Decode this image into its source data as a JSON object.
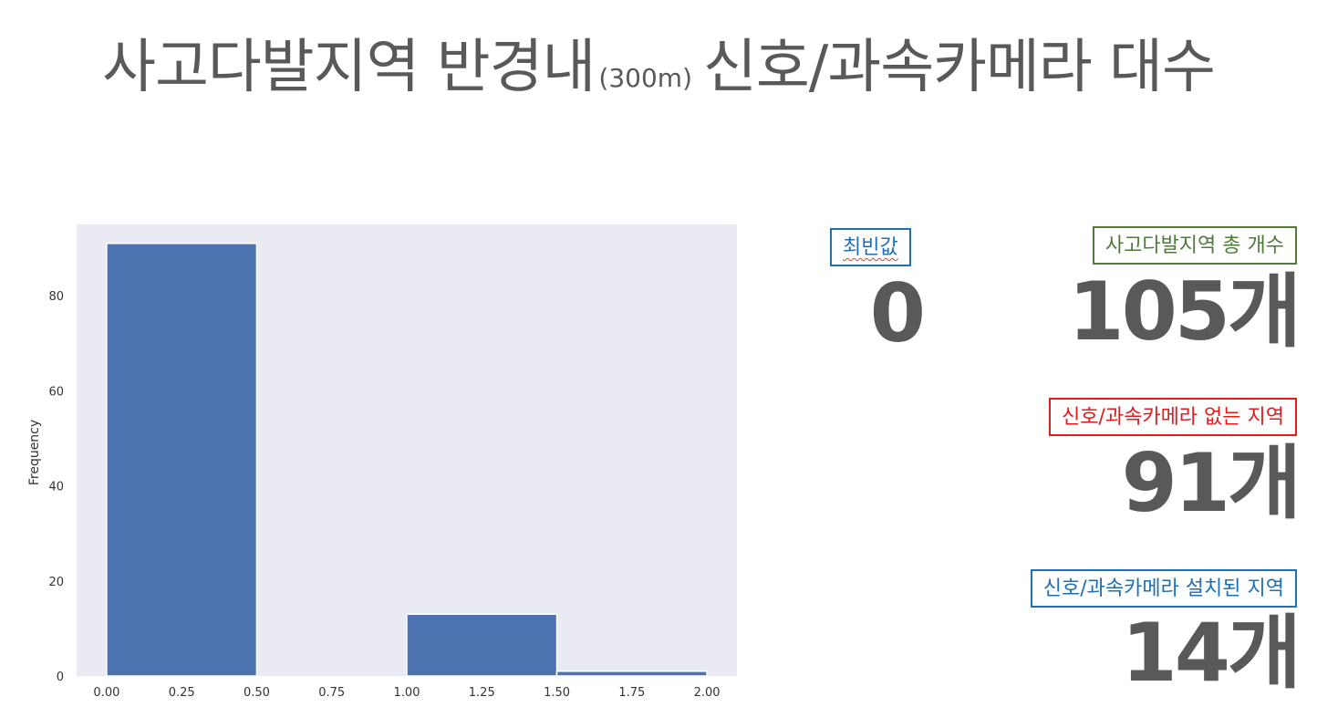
{
  "title": {
    "main_left": "사고다발지역 반경내",
    "sub": "(300m)",
    "main_right": "신호/과속카메라 대수"
  },
  "stats": {
    "mode": {
      "label": "최빈값",
      "value": "0",
      "border_color": "#1f6fb2",
      "label_color": "#1f6fb2"
    },
    "total": {
      "label": "사고다발지역 총 개수",
      "value": "105개",
      "border_color": "#4f7a3a",
      "label_color": "#4f7a3a"
    },
    "without": {
      "label": "신호/과속카메라 없는 지역",
      "value": "91개",
      "border_color": "#e41a1c",
      "label_color": "#e41a1c"
    },
    "with": {
      "label": "신호/과속카메라 설치된 지역",
      "value": "14개",
      "border_color": "#1f6fb2",
      "label_color": "#1f6fb2"
    }
  },
  "chart_data": {
    "type": "bar",
    "subtype": "histogram",
    "bins": [
      {
        "start": 0.0,
        "end": 0.5,
        "value": 91
      },
      {
        "start": 0.5,
        "end": 1.0,
        "value": 0
      },
      {
        "start": 1.0,
        "end": 1.5,
        "value": 13
      },
      {
        "start": 1.5,
        "end": 2.0,
        "value": 1
      }
    ],
    "xlabel": "",
    "ylabel": "Frequency",
    "xlim": [
      -0.1,
      2.1
    ],
    "ylim": [
      0,
      95
    ],
    "xticks": [
      "0.00",
      "0.25",
      "0.50",
      "0.75",
      "1.00",
      "1.25",
      "1.50",
      "1.75",
      "2.00"
    ],
    "xtick_values": [
      0,
      0.25,
      0.5,
      0.75,
      1.0,
      1.25,
      1.5,
      1.75,
      2.0
    ],
    "yticks": [
      "0",
      "20",
      "40",
      "60",
      "80"
    ],
    "ytick_values": [
      0,
      20,
      40,
      60,
      80
    ],
    "grid": false,
    "bar_color": "#4c72b0",
    "background_color": "#eaeaf2"
  }
}
